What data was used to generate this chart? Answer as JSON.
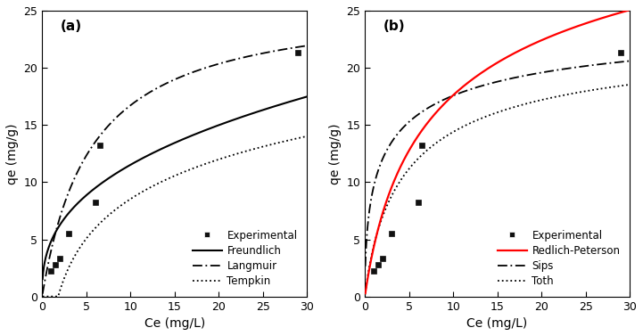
{
  "exp_x": [
    1.0,
    1.5,
    2.0,
    3.0,
    6.0,
    6.5,
    29.0
  ],
  "exp_y": [
    2.2,
    2.8,
    3.3,
    5.5,
    8.2,
    13.2,
    21.3
  ],
  "freundlich_params": {
    "KF": 4.8,
    "n": 0.38
  },
  "langmuir_params": {
    "qmax": 26.0,
    "KL": 0.18
  },
  "tempkin_params": {
    "A": 0.55,
    "B": 5.0
  },
  "rp_params": {
    "KRP": 5.5,
    "aRP": 0.28,
    "beta": 0.88
  },
  "sips_params": {
    "qmax": 26.0,
    "KS": 0.38,
    "ns": 0.55
  },
  "toth_params": {
    "qmax": 23.5,
    "KT": 2.5,
    "t": 0.75
  },
  "exp_color": "#111111",
  "freundlich_color": "#000000",
  "langmuir_color": "#000000",
  "tempkin_color": "#000000",
  "rp_color": "#ff0000",
  "sips_color": "#000000",
  "toth_color": "#000000",
  "xlim": [
    0,
    30
  ],
  "ylim": [
    0,
    25
  ],
  "xticks": [
    0,
    5,
    10,
    15,
    20,
    25,
    30
  ],
  "yticks": [
    0,
    5,
    10,
    15,
    20,
    25
  ],
  "xlabel": "Ce (mg/L)",
  "ylabel": "qe (mg/g)",
  "label_a": "(a)",
  "label_b": "(b)",
  "legend_a": [
    "Experimental",
    "Freundlich",
    "Langmuir",
    "Tempkin"
  ],
  "legend_b": [
    "Experimental",
    "Redlich-Peterson",
    "Sips",
    "Toth"
  ],
  "bg_color": "#ffffff",
  "fontsize": 10,
  "tick_fontsize": 9,
  "legend_fontsize": 8.5
}
